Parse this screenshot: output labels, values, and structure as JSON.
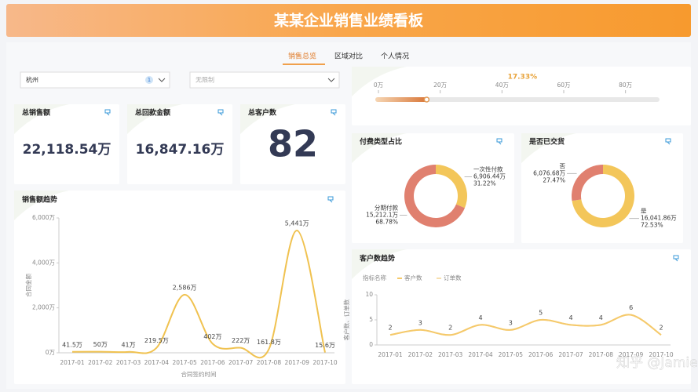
{
  "header": {
    "title": "某某企业销售业绩看板"
  },
  "tabs": [
    "销售总览",
    "区域对比",
    "个人情况"
  ],
  "filters": [
    {
      "value": "杭州",
      "count": 1
    },
    {
      "value": "无限制"
    }
  ],
  "kpis": [
    {
      "title": "总销售额",
      "value": "22,118.54万"
    },
    {
      "title": "总回款金额",
      "value": "16,847.16万"
    },
    {
      "title": "总客户数",
      "value": 82
    }
  ],
  "chart_data": [
    {
      "type": "progress",
      "value": 15.6,
      "annotation": "17.33%",
      "xlim": [
        0,
        90
      ],
      "xticks": [
        {
          "value": 0,
          "label": "0万"
        },
        {
          "value": 20,
          "label": "20万"
        },
        {
          "value": 40,
          "label": "40万"
        },
        {
          "value": 60,
          "label": "60万"
        },
        {
          "value": 80,
          "label": "80万"
        }
      ],
      "color": "#e29a55"
    },
    {
      "type": "line",
      "title": "销售额趋势",
      "x_label": "合同签约时间",
      "y_label": "合同金额",
      "categories": [
        "2017-01",
        "2017-02",
        "2017-03",
        "2017-04",
        "2017-05",
        "2017-06",
        "2017-07",
        "2017-08",
        "2017-09",
        "2017-10"
      ],
      "values": [
        41.5,
        50,
        41,
        219.5,
        2586,
        402,
        222,
        161.8,
        5441,
        15.6
      ],
      "value_labels": [
        "41.5万",
        "50万",
        "41万",
        "219.5万",
        "2,586万",
        "402万",
        "222万",
        "161.8万",
        "5,441万",
        "15.6万"
      ],
      "color": "#f0c250",
      "ylim": [
        0,
        6000
      ],
      "yticks": [
        {
          "value": 0,
          "label": "0万"
        },
        {
          "value": 2000,
          "label": "2,000万"
        },
        {
          "value": 4000,
          "label": "4,000万"
        },
        {
          "value": 6000,
          "label": "6,000万"
        }
      ]
    },
    {
      "type": "pie",
      "title": "付费类型占比",
      "categories": [
        "一次性付款",
        "分期付款"
      ],
      "values": [
        31.22,
        68.78
      ],
      "value_labels": [
        "31.22%",
        "68.78%"
      ],
      "amounts": [
        6906.44,
        15212.1
      ],
      "amount_labels": [
        "6,906.44万",
        "15,212.1万"
      ],
      "colors": [
        "#f3c65a",
        "#e0806f"
      ]
    },
    {
      "type": "pie",
      "title": "是否已交货",
      "categories": [
        "是",
        "否"
      ],
      "values": [
        72.53,
        27.47
      ],
      "value_labels": [
        "72.53%",
        "27.47%"
      ],
      "amounts": [
        16041.86,
        6076.68
      ],
      "amount_labels": [
        "16,041.86万",
        "6,076.68万"
      ],
      "colors": [
        "#f3c65a",
        "#e0806f"
      ]
    },
    {
      "type": "line",
      "title": "客户数趋势",
      "y_label": "客户数、订单数",
      "legend_title": "指标名称",
      "categories": [
        "2017-01",
        "2017-02",
        "2017-03",
        "2017-04",
        "2017-05",
        "2017-06",
        "2017-07",
        "2017-08",
        "2017-09",
        "2017-10"
      ],
      "series": [
        {
          "name": "客户数",
          "color": "#f5c96a",
          "values": [
            2,
            3,
            2,
            4,
            3,
            5,
            4,
            4,
            6,
            2
          ]
        },
        {
          "name": "订单数",
          "color": "#f7dfae",
          "values": [
            2,
            3,
            2,
            4,
            3,
            5,
            4,
            4,
            6,
            2
          ]
        }
      ],
      "ylim": [
        0,
        10
      ],
      "yticks": [
        0,
        5,
        10
      ]
    }
  ],
  "watermark": "知乎 @Jamie咩"
}
